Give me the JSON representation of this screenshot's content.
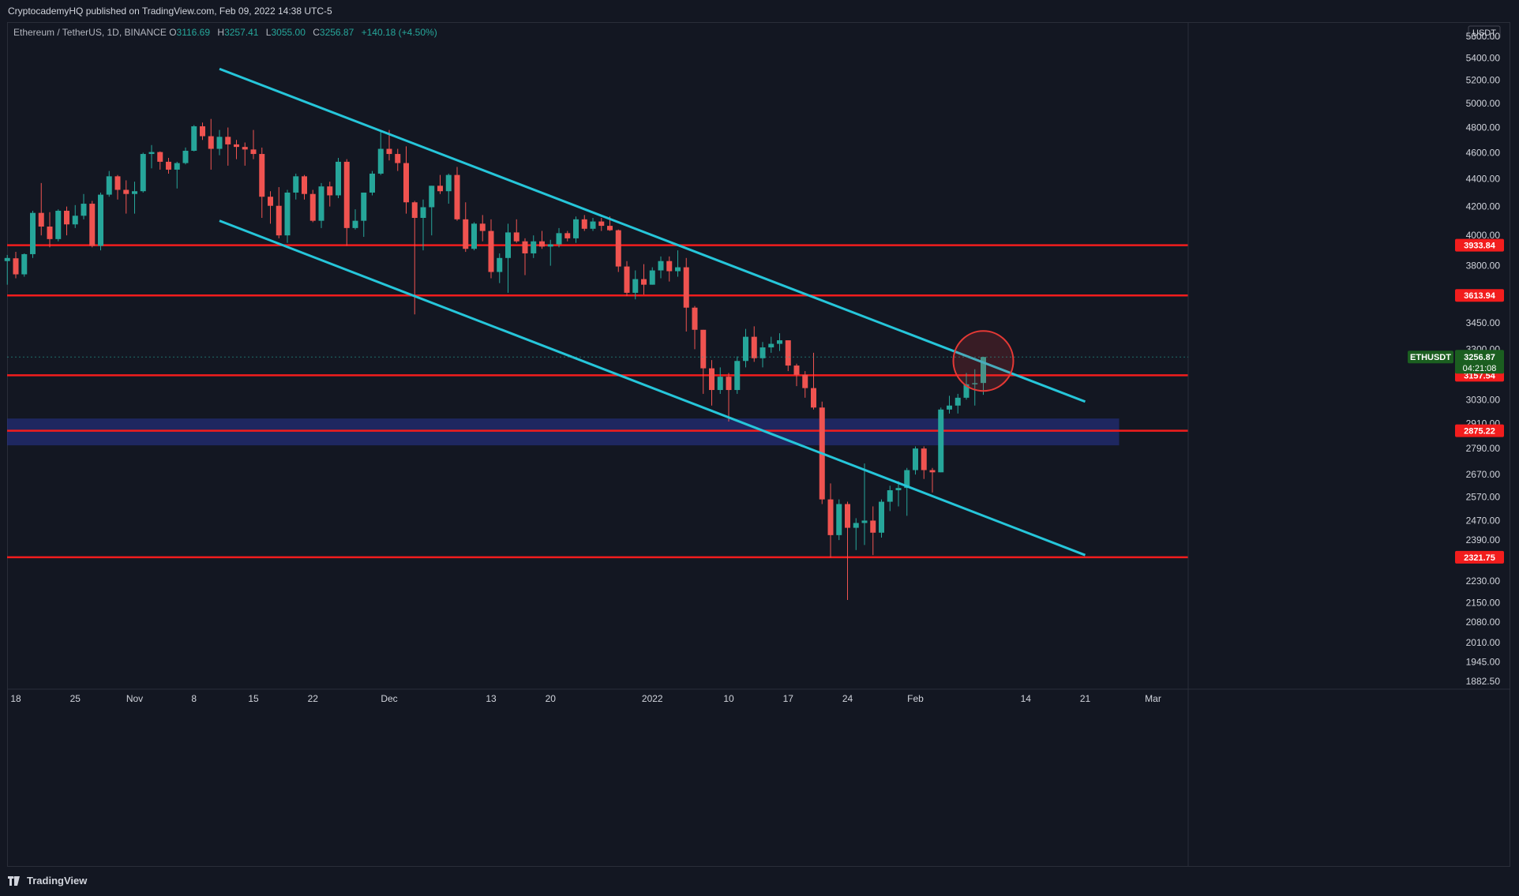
{
  "header": {
    "published": "CryptocademyHQ published on TradingView.com, Feb 09, 2022 14:38 UTC-5"
  },
  "legend": {
    "symbol": "Ethereum / TetherUS, 1D, BINANCE",
    "o_label": "O",
    "o": "3116.69",
    "h_label": "H",
    "h": "3257.41",
    "l_label": "L",
    "l": "3055.00",
    "c_label": "C",
    "c": "3256.87",
    "change": "+140.18 (+4.50%)"
  },
  "footer": {
    "brand": "TradingView"
  },
  "colors": {
    "background": "#131722",
    "up": "#26a69a",
    "down": "#ef5350",
    "channel": "#26c6da",
    "level": "#f21d1d",
    "zone": "#283593",
    "highlight_circle": "#e53935"
  },
  "chart_data": {
    "type": "candlestick",
    "symbol": "ETHUSDT",
    "currency": "USDT",
    "scale": "log",
    "ylim": [
      1850,
      5800
    ],
    "y_ticks": [
      "5600.00",
      "5400.00",
      "5200.00",
      "5000.00",
      "4800.00",
      "4600.00",
      "4400.00",
      "4200.00",
      "4000.00",
      "3800.00",
      "3450.00",
      "3300.00",
      "3030.00",
      "2910.00",
      "2790.00",
      "2670.00",
      "2570.00",
      "2470.00",
      "2390.00",
      "2230.00",
      "2150.00",
      "2080.00",
      "2010.00",
      "1945.00",
      "1882.50"
    ],
    "x_ticks": [
      {
        "label": "18",
        "date": "2021-10-18"
      },
      {
        "label": "25",
        "date": "2021-10-25"
      },
      {
        "label": "Nov",
        "date": "2021-11-01"
      },
      {
        "label": "8",
        "date": "2021-11-08"
      },
      {
        "label": "15",
        "date": "2021-11-15"
      },
      {
        "label": "22",
        "date": "2021-11-22"
      },
      {
        "label": "Dec",
        "date": "2021-12-01"
      },
      {
        "label": "13",
        "date": "2021-12-13"
      },
      {
        "label": "20",
        "date": "2021-12-20"
      },
      {
        "label": "2022",
        "date": "2022-01-01"
      },
      {
        "label": "10",
        "date": "2022-01-10"
      },
      {
        "label": "17",
        "date": "2022-01-17"
      },
      {
        "label": "24",
        "date": "2022-01-24"
      },
      {
        "label": "Feb",
        "date": "2022-02-01"
      },
      {
        "label": "14",
        "date": "2022-02-14"
      },
      {
        "label": "21",
        "date": "2022-02-21"
      },
      {
        "label": "Mar",
        "date": "2022-03-01"
      }
    ],
    "levels": [
      {
        "value": 3933.84,
        "label": "3933.84"
      },
      {
        "value": 3613.94,
        "label": "3613.94"
      },
      {
        "value": 3157.54,
        "label": "3157.54"
      },
      {
        "value": 2875.22,
        "label": "2875.22"
      },
      {
        "value": 2321.75,
        "label": "2321.75"
      }
    ],
    "zone": {
      "low": 2805,
      "high": 2935,
      "end": "2022-02-25"
    },
    "price_tag": {
      "symbol": "ETHUSDT",
      "price": "3256.87",
      "countdown": "04:21:08"
    },
    "channel_lines": [
      {
        "from": {
          "date": "2021-11-11",
          "price": 5300
        },
        "to": {
          "date": "2022-02-21",
          "price": 3020
        }
      },
      {
        "from": {
          "date": "2021-11-11",
          "price": 4100
        },
        "to": {
          "date": "2022-02-21",
          "price": 2330
        }
      }
    ],
    "highlight": {
      "date": "2022-02-09",
      "price": 3235
    },
    "candles": [
      {
        "d": "2021-10-17",
        "o": 3830,
        "h": 3870,
        "l": 3680,
        "c": 3850
      },
      {
        "d": "2021-10-18",
        "o": 3848,
        "h": 3890,
        "l": 3720,
        "c": 3745
      },
      {
        "d": "2021-10-19",
        "o": 3745,
        "h": 3880,
        "l": 3730,
        "c": 3875
      },
      {
        "d": "2021-10-20",
        "o": 3875,
        "h": 4170,
        "l": 3850,
        "c": 4155
      },
      {
        "d": "2021-10-21",
        "o": 4155,
        "h": 4370,
        "l": 4000,
        "c": 4060
      },
      {
        "d": "2021-10-22",
        "o": 4060,
        "h": 4160,
        "l": 3920,
        "c": 3975
      },
      {
        "d": "2021-10-23",
        "o": 3975,
        "h": 4180,
        "l": 3960,
        "c": 4170
      },
      {
        "d": "2021-10-24",
        "o": 4170,
        "h": 4200,
        "l": 4000,
        "c": 4075
      },
      {
        "d": "2021-10-25",
        "o": 4075,
        "h": 4210,
        "l": 4050,
        "c": 4135
      },
      {
        "d": "2021-10-26",
        "o": 4135,
        "h": 4290,
        "l": 4110,
        "c": 4220
      },
      {
        "d": "2021-10-27",
        "o": 4220,
        "h": 4240,
        "l": 3920,
        "c": 3930
      },
      {
        "d": "2021-10-28",
        "o": 3930,
        "h": 4300,
        "l": 3900,
        "c": 4285
      },
      {
        "d": "2021-10-29",
        "o": 4285,
        "h": 4460,
        "l": 4270,
        "c": 4420
      },
      {
        "d": "2021-10-30",
        "o": 4420,
        "h": 4430,
        "l": 4250,
        "c": 4320
      },
      {
        "d": "2021-10-31",
        "o": 4320,
        "h": 4390,
        "l": 4150,
        "c": 4290
      },
      {
        "d": "2021-11-01",
        "o": 4290,
        "h": 4380,
        "l": 4150,
        "c": 4310
      },
      {
        "d": "2021-11-02",
        "o": 4310,
        "h": 4600,
        "l": 4300,
        "c": 4590
      },
      {
        "d": "2021-11-03",
        "o": 4590,
        "h": 4660,
        "l": 4480,
        "c": 4605
      },
      {
        "d": "2021-11-04",
        "o": 4605,
        "h": 4610,
        "l": 4470,
        "c": 4530
      },
      {
        "d": "2021-11-05",
        "o": 4530,
        "h": 4560,
        "l": 4440,
        "c": 4470
      },
      {
        "d": "2021-11-06",
        "o": 4470,
        "h": 4530,
        "l": 4330,
        "c": 4520
      },
      {
        "d": "2021-11-07",
        "o": 4520,
        "h": 4640,
        "l": 4510,
        "c": 4615
      },
      {
        "d": "2021-11-08",
        "o": 4615,
        "h": 4820,
        "l": 4610,
        "c": 4810
      },
      {
        "d": "2021-11-09",
        "o": 4810,
        "h": 4840,
        "l": 4700,
        "c": 4730
      },
      {
        "d": "2021-11-10",
        "o": 4730,
        "h": 4870,
        "l": 4470,
        "c": 4630
      },
      {
        "d": "2021-11-11",
        "o": 4630,
        "h": 4780,
        "l": 4580,
        "c": 4725
      },
      {
        "d": "2021-11-12",
        "o": 4725,
        "h": 4800,
        "l": 4500,
        "c": 4665
      },
      {
        "d": "2021-11-13",
        "o": 4665,
        "h": 4700,
        "l": 4550,
        "c": 4645
      },
      {
        "d": "2021-11-14",
        "o": 4645,
        "h": 4680,
        "l": 4500,
        "c": 4625
      },
      {
        "d": "2021-11-15",
        "o": 4625,
        "h": 4780,
        "l": 4550,
        "c": 4590
      },
      {
        "d": "2021-11-16",
        "o": 4590,
        "h": 4640,
        "l": 4120,
        "c": 4270
      },
      {
        "d": "2021-11-17",
        "o": 4270,
        "h": 4310,
        "l": 4080,
        "c": 4205
      },
      {
        "d": "2021-11-18",
        "o": 4205,
        "h": 4340,
        "l": 3980,
        "c": 4000
      },
      {
        "d": "2021-11-19",
        "o": 4000,
        "h": 4320,
        "l": 3950,
        "c": 4300
      },
      {
        "d": "2021-11-20",
        "o": 4300,
        "h": 4440,
        "l": 4250,
        "c": 4420
      },
      {
        "d": "2021-11-21",
        "o": 4420,
        "h": 4430,
        "l": 4250,
        "c": 4290
      },
      {
        "d": "2021-11-22",
        "o": 4290,
        "h": 4320,
        "l": 4090,
        "c": 4100
      },
      {
        "d": "2021-11-23",
        "o": 4100,
        "h": 4370,
        "l": 4050,
        "c": 4345
      },
      {
        "d": "2021-11-24",
        "o": 4345,
        "h": 4380,
        "l": 4200,
        "c": 4280
      },
      {
        "d": "2021-11-25",
        "o": 4280,
        "h": 4560,
        "l": 4260,
        "c": 4530
      },
      {
        "d": "2021-11-26",
        "o": 4530,
        "h": 4550,
        "l": 3930,
        "c": 4050
      },
      {
        "d": "2021-11-27",
        "o": 4050,
        "h": 4180,
        "l": 4040,
        "c": 4100
      },
      {
        "d": "2021-11-28",
        "o": 4100,
        "h": 4300,
        "l": 3990,
        "c": 4300
      },
      {
        "d": "2021-11-29",
        "o": 4300,
        "h": 4460,
        "l": 4280,
        "c": 4440
      },
      {
        "d": "2021-11-30",
        "o": 4440,
        "h": 4770,
        "l": 4430,
        "c": 4630
      },
      {
        "d": "2021-12-01",
        "o": 4630,
        "h": 4780,
        "l": 4540,
        "c": 4590
      },
      {
        "d": "2021-12-02",
        "o": 4590,
        "h": 4630,
        "l": 4460,
        "c": 4520
      },
      {
        "d": "2021-12-03",
        "o": 4520,
        "h": 4650,
        "l": 4150,
        "c": 4230
      },
      {
        "d": "2021-12-04",
        "o": 4230,
        "h": 4240,
        "l": 3500,
        "c": 4120
      },
      {
        "d": "2021-12-05",
        "o": 4120,
        "h": 4250,
        "l": 3900,
        "c": 4195
      },
      {
        "d": "2021-12-06",
        "o": 4195,
        "h": 4350,
        "l": 4000,
        "c": 4350
      },
      {
        "d": "2021-12-07",
        "o": 4350,
        "h": 4430,
        "l": 4290,
        "c": 4310
      },
      {
        "d": "2021-12-08",
        "o": 4310,
        "h": 4440,
        "l": 4220,
        "c": 4430
      },
      {
        "d": "2021-12-09",
        "o": 4430,
        "h": 4490,
        "l": 4100,
        "c": 4110
      },
      {
        "d": "2021-12-10",
        "o": 4110,
        "h": 4230,
        "l": 3890,
        "c": 3910
      },
      {
        "d": "2021-12-11",
        "o": 3910,
        "h": 4090,
        "l": 3900,
        "c": 4080
      },
      {
        "d": "2021-12-12",
        "o": 4080,
        "h": 4140,
        "l": 3960,
        "c": 4030
      },
      {
        "d": "2021-12-13",
        "o": 4030,
        "h": 4110,
        "l": 3720,
        "c": 3760
      },
      {
        "d": "2021-12-14",
        "o": 3760,
        "h": 3880,
        "l": 3690,
        "c": 3850
      },
      {
        "d": "2021-12-15",
        "o": 3850,
        "h": 4080,
        "l": 3630,
        "c": 4020
      },
      {
        "d": "2021-12-16",
        "o": 4020,
        "h": 4110,
        "l": 3950,
        "c": 3960
      },
      {
        "d": "2021-12-17",
        "o": 3960,
        "h": 3980,
        "l": 3740,
        "c": 3880
      },
      {
        "d": "2021-12-18",
        "o": 3880,
        "h": 4000,
        "l": 3850,
        "c": 3960
      },
      {
        "d": "2021-12-19",
        "o": 3960,
        "h": 4030,
        "l": 3910,
        "c": 3925
      },
      {
        "d": "2021-12-20",
        "o": 3925,
        "h": 3970,
        "l": 3800,
        "c": 3940
      },
      {
        "d": "2021-12-21",
        "o": 3940,
        "h": 4050,
        "l": 3920,
        "c": 4015
      },
      {
        "d": "2021-12-22",
        "o": 4015,
        "h": 4030,
        "l": 3960,
        "c": 3980
      },
      {
        "d": "2021-12-23",
        "o": 3980,
        "h": 4130,
        "l": 3950,
        "c": 4110
      },
      {
        "d": "2021-12-24",
        "o": 4110,
        "h": 4140,
        "l": 4030,
        "c": 4045
      },
      {
        "d": "2021-12-25",
        "o": 4045,
        "h": 4120,
        "l": 4030,
        "c": 4095
      },
      {
        "d": "2021-12-26",
        "o": 4095,
        "h": 4120,
        "l": 4030,
        "c": 4065
      },
      {
        "d": "2021-12-27",
        "o": 4065,
        "h": 4130,
        "l": 4030,
        "c": 4035
      },
      {
        "d": "2021-12-28",
        "o": 4035,
        "h": 4040,
        "l": 3760,
        "c": 3795
      },
      {
        "d": "2021-12-29",
        "o": 3795,
        "h": 3830,
        "l": 3610,
        "c": 3630
      },
      {
        "d": "2021-12-30",
        "o": 3630,
        "h": 3770,
        "l": 3590,
        "c": 3715
      },
      {
        "d": "2021-12-31",
        "o": 3715,
        "h": 3810,
        "l": 3620,
        "c": 3680
      },
      {
        "d": "2022-01-01",
        "o": 3680,
        "h": 3790,
        "l": 3680,
        "c": 3770
      },
      {
        "d": "2022-01-02",
        "o": 3770,
        "h": 3860,
        "l": 3720,
        "c": 3830
      },
      {
        "d": "2022-01-03",
        "o": 3830,
        "h": 3860,
        "l": 3700,
        "c": 3765
      },
      {
        "d": "2022-01-04",
        "o": 3765,
        "h": 3900,
        "l": 3730,
        "c": 3790
      },
      {
        "d": "2022-01-05",
        "o": 3790,
        "h": 3850,
        "l": 3400,
        "c": 3540
      },
      {
        "d": "2022-01-06",
        "o": 3540,
        "h": 3550,
        "l": 3300,
        "c": 3410
      },
      {
        "d": "2022-01-07",
        "o": 3410,
        "h": 3410,
        "l": 3060,
        "c": 3195
      },
      {
        "d": "2022-01-08",
        "o": 3195,
        "h": 3240,
        "l": 3000,
        "c": 3080
      },
      {
        "d": "2022-01-09",
        "o": 3080,
        "h": 3200,
        "l": 3060,
        "c": 3150
      },
      {
        "d": "2022-01-10",
        "o": 3150,
        "h": 3170,
        "l": 2920,
        "c": 3080
      },
      {
        "d": "2022-01-11",
        "o": 3080,
        "h": 3260,
        "l": 3060,
        "c": 3235
      },
      {
        "d": "2022-01-12",
        "o": 3235,
        "h": 3415,
        "l": 3200,
        "c": 3370
      },
      {
        "d": "2022-01-13",
        "o": 3370,
        "h": 3430,
        "l": 3230,
        "c": 3250
      },
      {
        "d": "2022-01-14",
        "o": 3250,
        "h": 3340,
        "l": 3200,
        "c": 3310
      },
      {
        "d": "2022-01-15",
        "o": 3310,
        "h": 3370,
        "l": 3280,
        "c": 3330
      },
      {
        "d": "2022-01-16",
        "o": 3330,
        "h": 3390,
        "l": 3290,
        "c": 3350
      },
      {
        "d": "2022-01-17",
        "o": 3350,
        "h": 3350,
        "l": 3180,
        "c": 3210
      },
      {
        "d": "2022-01-18",
        "o": 3210,
        "h": 3220,
        "l": 3100,
        "c": 3160
      },
      {
        "d": "2022-01-19",
        "o": 3160,
        "h": 3180,
        "l": 3040,
        "c": 3090
      },
      {
        "d": "2022-01-20",
        "o": 3090,
        "h": 3280,
        "l": 2980,
        "c": 2990
      },
      {
        "d": "2022-01-21",
        "o": 2990,
        "h": 3020,
        "l": 2540,
        "c": 2560
      },
      {
        "d": "2022-01-22",
        "o": 2560,
        "h": 2630,
        "l": 2320,
        "c": 2410
      },
      {
        "d": "2022-01-23",
        "o": 2410,
        "h": 2560,
        "l": 2390,
        "c": 2540
      },
      {
        "d": "2022-01-24",
        "o": 2540,
        "h": 2550,
        "l": 2160,
        "c": 2440
      },
      {
        "d": "2022-01-25",
        "o": 2440,
        "h": 2480,
        "l": 2350,
        "c": 2460
      },
      {
        "d": "2022-01-26",
        "o": 2460,
        "h": 2720,
        "l": 2370,
        "c": 2470
      },
      {
        "d": "2022-01-27",
        "o": 2470,
        "h": 2530,
        "l": 2330,
        "c": 2420
      },
      {
        "d": "2022-01-28",
        "o": 2420,
        "h": 2560,
        "l": 2400,
        "c": 2550
      },
      {
        "d": "2022-01-29",
        "o": 2550,
        "h": 2620,
        "l": 2510,
        "c": 2600
      },
      {
        "d": "2022-01-30",
        "o": 2600,
        "h": 2640,
        "l": 2530,
        "c": 2610
      },
      {
        "d": "2022-01-31",
        "o": 2610,
        "h": 2700,
        "l": 2490,
        "c": 2690
      },
      {
        "d": "2022-02-01",
        "o": 2690,
        "h": 2800,
        "l": 2670,
        "c": 2790
      },
      {
        "d": "2022-02-02",
        "o": 2790,
        "h": 2800,
        "l": 2650,
        "c": 2690
      },
      {
        "d": "2022-02-03",
        "o": 2690,
        "h": 2700,
        "l": 2590,
        "c": 2680
      },
      {
        "d": "2022-02-04",
        "o": 2680,
        "h": 2990,
        "l": 2680,
        "c": 2980
      },
      {
        "d": "2022-02-05",
        "o": 2980,
        "h": 3050,
        "l": 2960,
        "c": 3000
      },
      {
        "d": "2022-02-06",
        "o": 3000,
        "h": 3060,
        "l": 2960,
        "c": 3040
      },
      {
        "d": "2022-02-07",
        "o": 3040,
        "h": 3170,
        "l": 3030,
        "c": 3110
      },
      {
        "d": "2022-02-08",
        "o": 3110,
        "h": 3190,
        "l": 3000,
        "c": 3116
      },
      {
        "d": "2022-02-09",
        "o": 3116.69,
        "h": 3257.41,
        "l": 3055.0,
        "c": 3256.87
      }
    ]
  }
}
